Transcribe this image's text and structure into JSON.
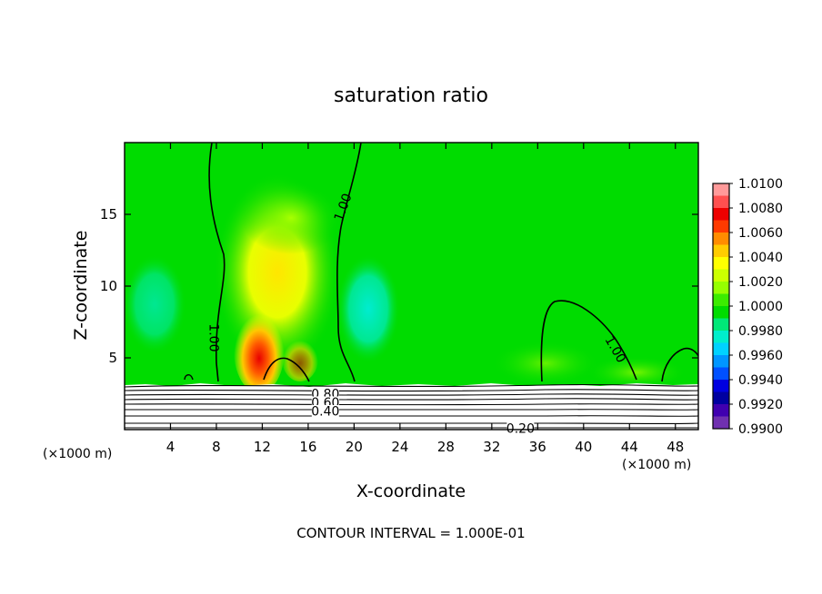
{
  "chart_data": {
    "type": "heatmap",
    "title": "saturation ratio",
    "xlabel": "X-coordinate",
    "ylabel": "Z-coordinate",
    "x_unit": "(×1000 m)",
    "z_unit": "(×1000 m)",
    "footer": "CONTOUR INTERVAL = 1.000E-01",
    "xlim": [
      0,
      50
    ],
    "ylim": [
      0,
      20
    ],
    "x_ticks": [
      4,
      8,
      12,
      16,
      20,
      24,
      28,
      32,
      36,
      40,
      44,
      48
    ],
    "y_ticks": [
      5,
      10,
      15
    ],
    "colorbar": {
      "labels": [
        "1.0100",
        "1.0080",
        "1.0060",
        "1.0040",
        "1.0020",
        "1.0000",
        "0.9980",
        "0.9960",
        "0.9940",
        "0.9920",
        "0.9900"
      ],
      "colors": [
        "#ff9a9a",
        "#ff5050",
        "#ee0000",
        "#ff3a00",
        "#ff8c00",
        "#ffcc00",
        "#ffff00",
        "#ccff00",
        "#96ff00",
        "#3cec00",
        "#00dc00",
        "#00e878",
        "#00eecc",
        "#00d2ff",
        "#0096ff",
        "#0050ff",
        "#0000e0",
        "#0000a0",
        "#4000b0",
        "#7030b0"
      ]
    },
    "contour_labels": [
      {
        "text": "1.00",
        "x": 19.0,
        "z": 15.5
      },
      {
        "text": "1.00",
        "x": 7.8,
        "z": 6.4
      },
      {
        "text": "1.00",
        "x": 42.8,
        "z": 5.6
      },
      {
        "text": "0.80",
        "x": 17.5,
        "z": 2.5
      },
      {
        "text": "0.60",
        "x": 17.5,
        "z": 1.9
      },
      {
        "text": "0.40",
        "x": 17.5,
        "z": 1.3
      },
      {
        "text": "0.20",
        "x": 34.5,
        "z": 0.1
      }
    ]
  }
}
